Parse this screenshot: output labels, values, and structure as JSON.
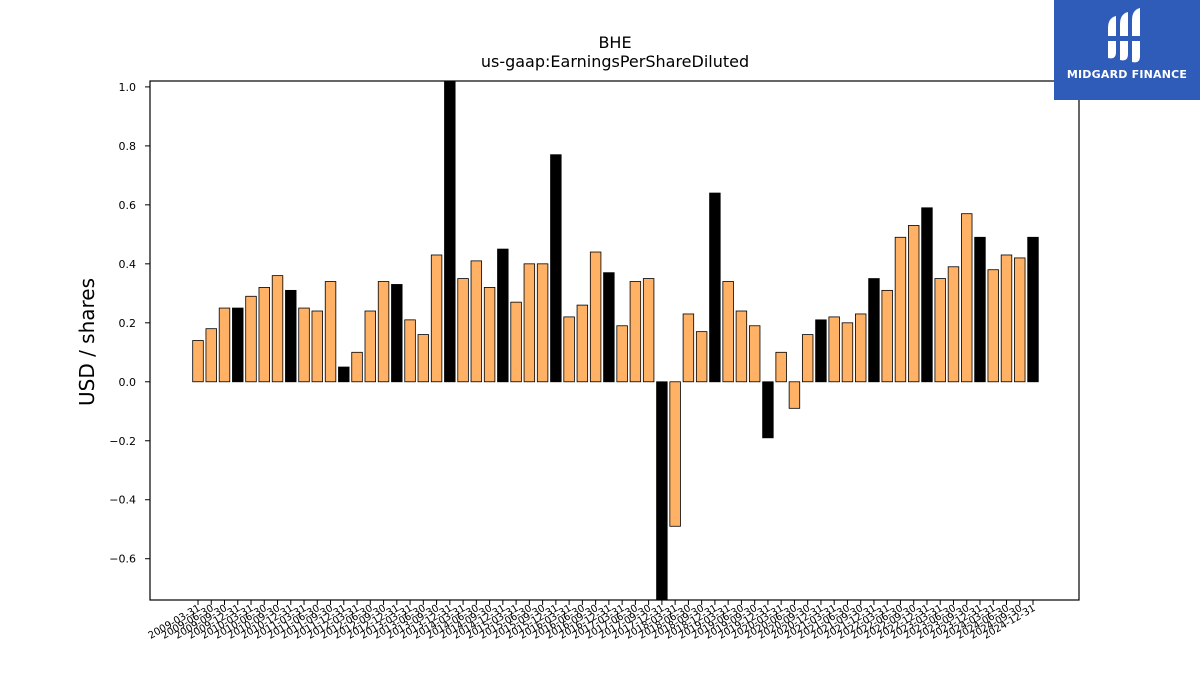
{
  "brand": {
    "name": "MIDGARD FINANCE",
    "color": "#2e5cb8",
    "icon": "midgard-logo-icon"
  },
  "colors": {
    "orange": "#ffb266",
    "black": "#000000"
  },
  "chart_data": {
    "type": "bar",
    "title": "BHE",
    "subtitle": "us-gaap:EarningsPerShareDiluted",
    "ylabel": "USD / shares",
    "xlabel": "",
    "ylim": [
      -0.74,
      1.02
    ],
    "yticks": [
      -0.6,
      -0.4,
      -0.2,
      0.0,
      0.2,
      0.4,
      0.6,
      0.8,
      1.0
    ],
    "ytick_labels": [
      "−0.6",
      "−0.4",
      "−0.2",
      "0.0",
      "0.2",
      "0.4",
      "0.6",
      "0.8",
      "1.0"
    ],
    "grid": false,
    "categories": [
      "2009-03-31",
      "2009-06-30",
      "2009-09-30",
      "2009-12-31",
      "2010-03-31",
      "2010-06-30",
      "2010-09-30",
      "2010-12-31",
      "2011-03-31",
      "2011-06-30",
      "2011-09-30",
      "2011-12-31",
      "2012-03-31",
      "2012-06-30",
      "2012-09-30",
      "2012-12-31",
      "2013-03-31",
      "2013-06-30",
      "2013-09-30",
      "2013-12-31",
      "2014-03-31",
      "2014-06-30",
      "2014-09-30",
      "2014-12-31",
      "2015-03-31",
      "2015-06-30",
      "2015-09-30",
      "2015-12-31",
      "2016-03-31",
      "2016-06-30",
      "2016-09-30",
      "2016-12-31",
      "2017-03-31",
      "2017-06-30",
      "2017-09-30",
      "2017-12-31",
      "2018-03-31",
      "2018-06-30",
      "2018-09-30",
      "2018-12-31",
      "2019-03-31",
      "2019-06-30",
      "2019-09-30",
      "2019-12-31",
      "2020-03-31",
      "2020-06-30",
      "2020-09-30",
      "2020-12-31",
      "2021-03-31",
      "2021-06-30",
      "2021-09-30",
      "2021-12-31",
      "2022-03-31",
      "2022-06-30",
      "2022-09-30",
      "2022-12-31",
      "2023-03-31",
      "2023-06-30",
      "2023-09-30",
      "2023-12-31",
      "2024-03-31",
      "2024-06-30",
      "2024-09-30",
      "2024-12-31"
    ],
    "values": [
      0.14,
      0.18,
      0.25,
      0.25,
      0.29,
      0.32,
      0.36,
      0.31,
      0.25,
      0.24,
      0.34,
      0.05,
      0.1,
      0.24,
      0.34,
      0.33,
      0.21,
      0.16,
      0.43,
      1.05,
      0.35,
      0.41,
      0.32,
      0.45,
      0.27,
      0.4,
      0.4,
      0.77,
      0.22,
      0.26,
      0.44,
      0.37,
      0.19,
      0.34,
      0.35,
      -0.8,
      -0.49,
      0.23,
      0.17,
      0.64,
      0.34,
      0.24,
      0.19,
      -0.19,
      0.1,
      -0.09,
      0.16,
      0.21,
      0.22,
      0.2,
      0.23,
      0.35,
      0.31,
      0.49,
      0.53,
      0.59,
      0.35,
      0.39,
      0.57,
      0.49,
      0.38,
      0.43,
      0.42,
      0.49
    ],
    "annual_flags": [
      false,
      false,
      false,
      true,
      false,
      false,
      false,
      true,
      false,
      false,
      false,
      true,
      false,
      false,
      false,
      true,
      false,
      false,
      false,
      true,
      false,
      false,
      false,
      true,
      false,
      false,
      false,
      true,
      false,
      false,
      false,
      true,
      false,
      false,
      false,
      true,
      false,
      false,
      false,
      true,
      false,
      false,
      false,
      true,
      false,
      false,
      false,
      true,
      false,
      false,
      false,
      true,
      false,
      false,
      false,
      true,
      false,
      false,
      false,
      true,
      false,
      false,
      false,
      true
    ],
    "legend": null
  }
}
